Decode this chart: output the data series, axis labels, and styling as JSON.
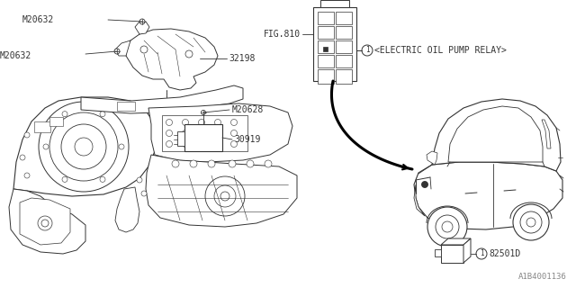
{
  "bg_color": "#ffffff",
  "line_color": "#333333",
  "text_color": "#333333",
  "fig_width": 6.4,
  "fig_height": 3.2,
  "dpi": 100,
  "labels": {
    "M20632_top": "M20632",
    "M20632_mid": "M20632",
    "M20628": "M20628",
    "part32198": "32198",
    "part30919": "30919",
    "FIG810": "FIG.810",
    "relay": "<ELECTRIC OIL PUMP RELAY>",
    "part_num": "82501D",
    "watermark": "A1B4001136"
  },
  "font_size": 7,
  "font_size_small": 5.5,
  "font_size_watermark": 6.5
}
